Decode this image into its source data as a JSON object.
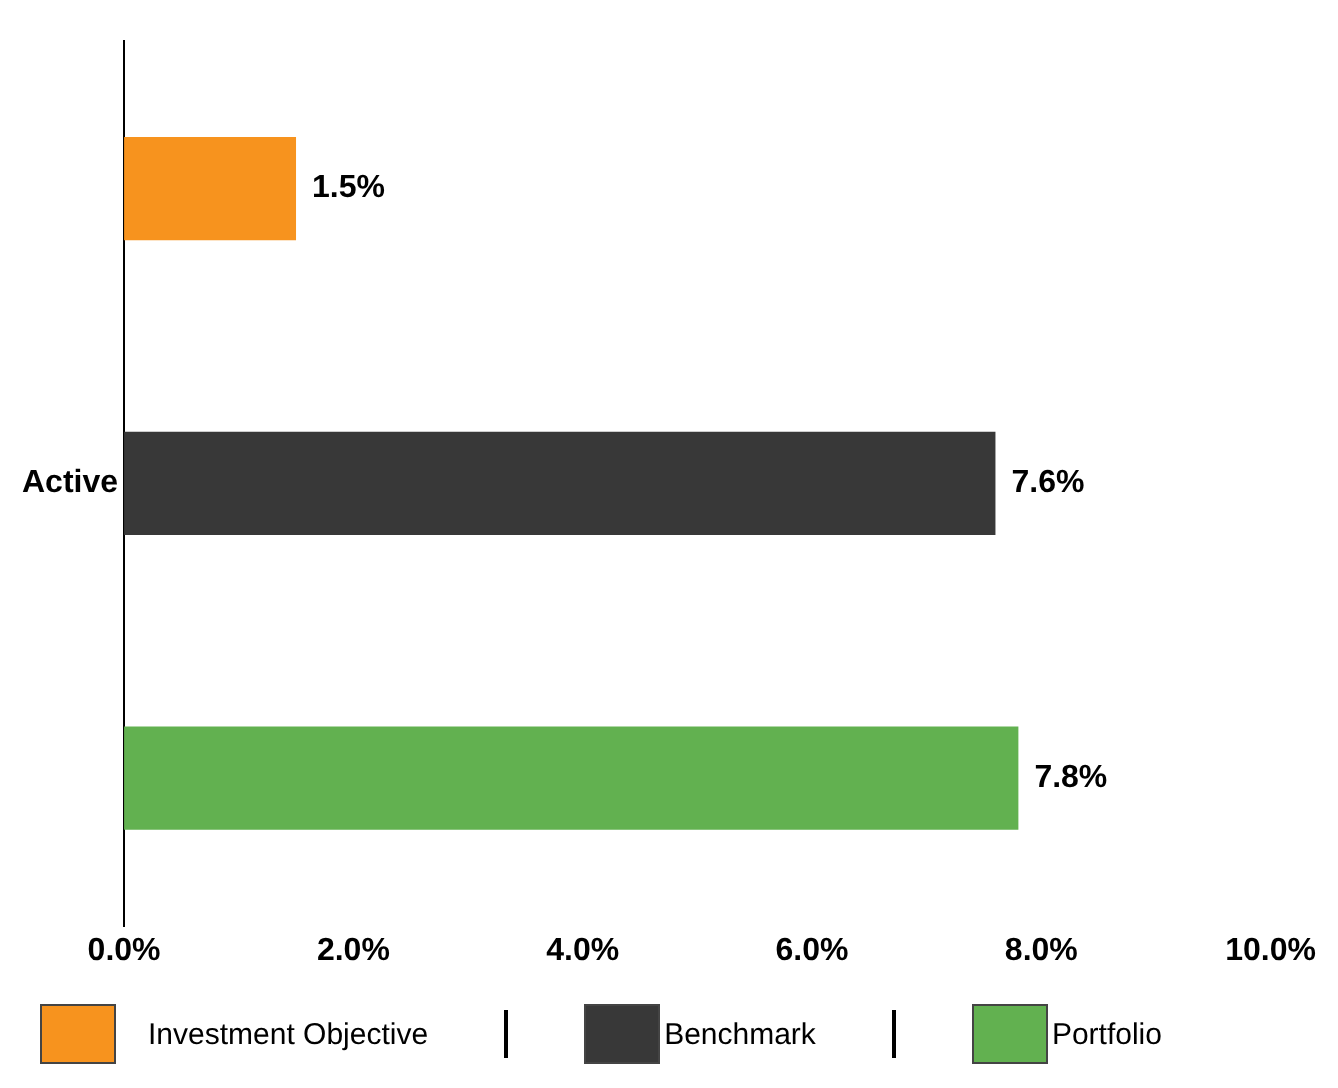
{
  "chart_data": {
    "type": "bar",
    "orientation": "horizontal",
    "categories": [
      "Active"
    ],
    "series": [
      {
        "name": "Investment Objective",
        "color": "#f7931e",
        "values": [
          1.5
        ],
        "value_labels": [
          "1.5%"
        ]
      },
      {
        "name": "Benchmark",
        "color": "#383838",
        "values": [
          7.6
        ],
        "value_labels": [
          "7.6%"
        ]
      },
      {
        "name": "Portfolio",
        "color": "#62b150",
        "values": [
          7.8
        ],
        "value_labels": [
          "7.8%"
        ]
      }
    ],
    "xlim": [
      0,
      10
    ],
    "xticks": [
      {
        "value": 0,
        "label": "0.0%"
      },
      {
        "value": 2,
        "label": "2.0%"
      },
      {
        "value": 4,
        "label": "4.0%"
      },
      {
        "value": 6,
        "label": "6.0%"
      },
      {
        "value": 8,
        "label": "8.0%"
      },
      {
        "value": 10,
        "label": "10.0%"
      }
    ],
    "grid": false,
    "legend": "bottom"
  }
}
